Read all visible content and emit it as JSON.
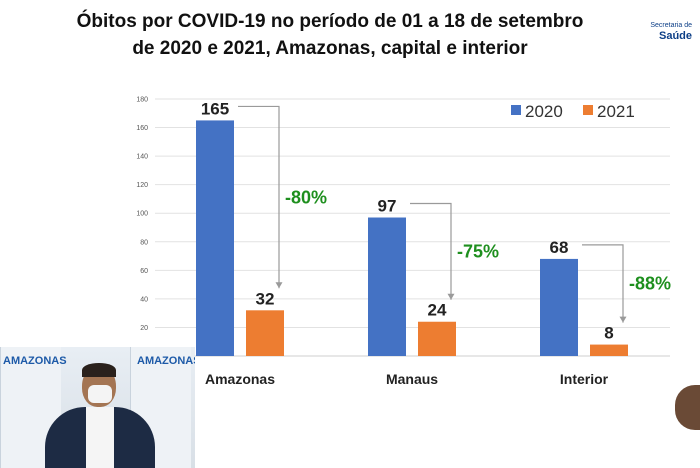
{
  "title": {
    "line1": "Óbitos por COVID-19 no período de 01 a 18 de setembro",
    "line2": "de 2020 e 2021, Amazonas, capital e interior"
  },
  "brand": {
    "small": "Secretaria de",
    "big": "Saúde"
  },
  "video_overlay": {
    "panel_text_1": "AMAZONAS",
    "panel_text_2": "AMAZONAS"
  },
  "chart_data": {
    "type": "bar",
    "title": "Óbitos por COVID-19 no período de 01 a 18 de setembro de 2020 e 2021, Amazonas, capital e interior",
    "categories": [
      "Amazonas",
      "Manaus",
      "Interior"
    ],
    "series": [
      {
        "name": "2020",
        "values": [
          165,
          97,
          68
        ],
        "color": "#4472C4"
      },
      {
        "name": "2021",
        "values": [
          32,
          24,
          8
        ],
        "color": "#ED7D31"
      }
    ],
    "change_labels": [
      "-80%",
      "-75%",
      "-88%"
    ],
    "change_color": "#1e8f1e",
    "ylim": [
      0,
      180
    ],
    "yticks": [
      20,
      40,
      60,
      80,
      100,
      120,
      140,
      160,
      180
    ],
    "grid": true,
    "legend": "top-right",
    "xlabel": "",
    "ylabel": ""
  }
}
